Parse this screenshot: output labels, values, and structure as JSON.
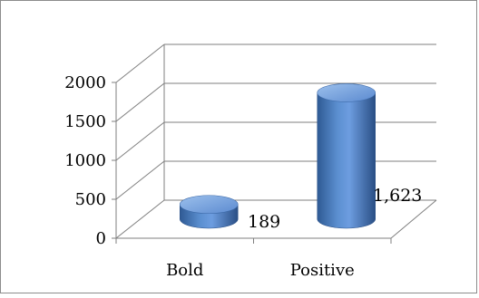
{
  "chart_data": {
    "type": "bar",
    "style": "3d-cylinder",
    "categories": [
      "Bold",
      "Positive"
    ],
    "values": [
      189,
      1623
    ],
    "data_labels": [
      "189",
      "1,623"
    ],
    "y_ticks": [
      "0",
      "500",
      "1000",
      "1500",
      "2000"
    ],
    "ylim": [
      0,
      2000
    ],
    "title": "",
    "xlabel": "",
    "ylabel": "",
    "gridlines": true,
    "legend": "none",
    "colors": {
      "bar": "#4f81bd",
      "bar_dark": "#2f5a94",
      "bar_light": "#8fb4e3",
      "grid": "#7f7f7f"
    }
  }
}
